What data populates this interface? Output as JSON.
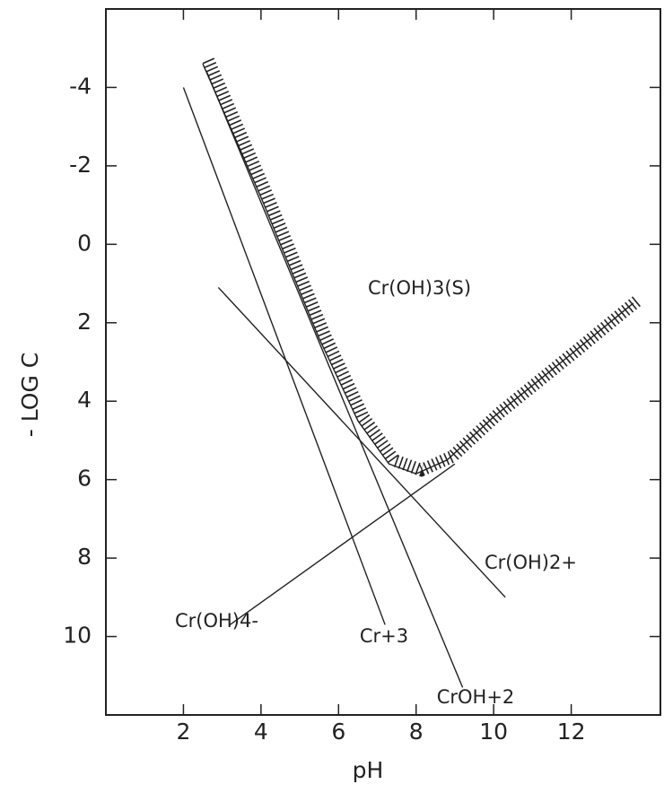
{
  "chart_data": {
    "type": "line",
    "xlabel": "pH",
    "ylabel": "- LOG C",
    "xlim": [
      0,
      14.3
    ],
    "ylim": [
      -6,
      12
    ],
    "y_inverted": true,
    "xticks": [
      2,
      4,
      6,
      8,
      10,
      12
    ],
    "yticks": [
      -4,
      -2,
      0,
      2,
      4,
      6,
      8,
      10
    ],
    "series": [
      {
        "name": "Cr(OH)3(S)",
        "color": "#222222",
        "style": "hatched",
        "x": [
          2.5,
          4,
          5.5,
          6.5,
          7.3,
          8,
          8.8,
          10,
          12,
          13.6
        ],
        "values": [
          -4.6,
          -1.2,
          2.4,
          4.5,
          5.6,
          5.85,
          5.5,
          4.4,
          2.8,
          1.5
        ]
      },
      {
        "name": "Cr+3",
        "color": "#222222",
        "x": [
          2,
          7.2
        ],
        "values": [
          -4,
          9.7
        ]
      },
      {
        "name": "CrOH+2",
        "color": "#222222",
        "x": [
          2.6,
          9.2
        ],
        "values": [
          -4.4,
          11.3
        ]
      },
      {
        "name": "Cr(OH)2+",
        "color": "#222222",
        "x": [
          2.9,
          10.3
        ],
        "values": [
          1.1,
          9
        ]
      },
      {
        "name": "Cr(OH)4-",
        "color": "#222222",
        "x": [
          3.2,
          9
        ],
        "values": [
          9.7,
          5.6
        ]
      }
    ]
  }
}
